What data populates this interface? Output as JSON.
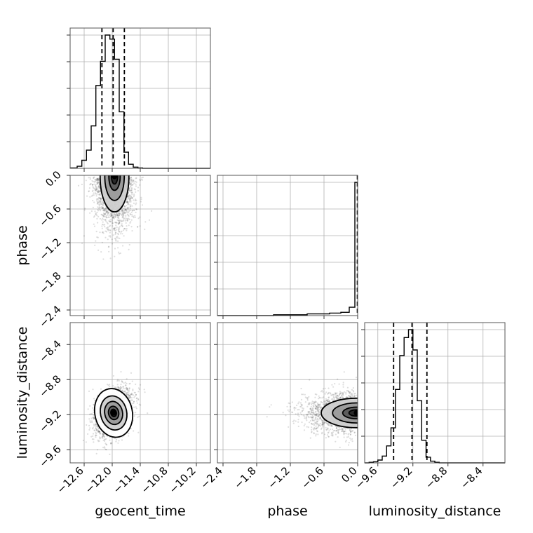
{
  "chart_data": {
    "type": "corner",
    "parameters": [
      "geocent_time",
      "phase",
      "luminosity_distance"
    ],
    "axis_labels": {
      "geocent_time": "geocent_time",
      "phase": "phase",
      "luminosity_distance": "luminosity_distance"
    },
    "ranges": {
      "geocent_time": [
        -12.9,
        -9.9
      ],
      "phase": [
        -2.5,
        0.0
      ],
      "luminosity_distance": [
        -9.75,
        -8.15
      ]
    },
    "ticks": {
      "geocent_time": [
        "−12.6",
        "−12.0",
        "−11.4",
        "−10.8",
        "−10.2"
      ],
      "phase": [
        "−2.4",
        "−1.8",
        "−1.2",
        "−0.6",
        "0.0"
      ],
      "luminosity_distance": [
        "−9.6",
        "−9.2",
        "−8.8",
        "−8.4"
      ]
    },
    "tick_values": {
      "geocent_time": [
        -12.6,
        -12.0,
        -11.4,
        -10.8,
        -10.2
      ],
      "phase": [
        -2.4,
        -1.8,
        -1.2,
        -0.6,
        0.0
      ],
      "luminosity_distance": [
        -9.6,
        -9.2,
        -8.8,
        -8.4
      ]
    },
    "histograms": {
      "geocent_time": {
        "bin_edges": [
          -12.9,
          -12.75,
          -12.65,
          -12.55,
          -12.45,
          -12.35,
          -12.25,
          -12.15,
          -12.05,
          -11.95,
          -11.85,
          -11.75,
          -11.65,
          -11.55,
          -11.45,
          -11.35,
          -11.25,
          -11.15,
          -9.9
        ],
        "counts": [
          1,
          5,
          20,
          45,
          105,
          205,
          265,
          330,
          320,
          270,
          140,
          40,
          10,
          3,
          1,
          0,
          0,
          0
        ],
        "quantiles": [
          -12.22,
          -11.98,
          -11.74
        ]
      },
      "phase": {
        "bin_edges": [
          -2.5,
          -1.5,
          -1.1,
          -0.9,
          -0.7,
          -0.5,
          -0.3,
          -0.15,
          -0.05,
          0.0
        ],
        "counts": [
          0,
          1,
          1,
          2,
          2,
          3,
          4,
          10,
          160
        ],
        "quantiles": [
          -0.005
        ]
      },
      "luminosity_distance": {
        "bin_edges": [
          -9.75,
          -9.7,
          -9.65,
          -9.6,
          -9.55,
          -9.5,
          -9.45,
          -9.4,
          -9.35,
          -9.3,
          -9.25,
          -9.2,
          -9.15,
          -9.1,
          -9.05,
          -9.0,
          -8.95,
          -8.9,
          -8.85,
          -8.8,
          -8.15
        ],
        "counts": [
          0,
          1,
          2,
          5,
          12,
          30,
          62,
          130,
          190,
          222,
          236,
          200,
          110,
          40,
          10,
          3,
          1,
          0,
          0,
          0
        ],
        "quantiles": [
          -9.42,
          -9.21,
          -9.04
        ]
      }
    },
    "joint": [
      {
        "x": "geocent_time",
        "y": "phase",
        "center": [
          -11.95,
          -0.02
        ],
        "spread": [
          0.22,
          0.45
        ],
        "points": 1800,
        "contour_levels": 3
      },
      {
        "x": "geocent_time",
        "y": "luminosity_distance",
        "center": [
          -11.97,
          -9.18
        ],
        "spread": [
          0.2,
          0.14
        ],
        "correlation": 0.35,
        "points": 2200,
        "contour_levels": 4
      },
      {
        "x": "phase",
        "y": "luminosity_distance",
        "center": [
          -0.02,
          -9.18
        ],
        "spread": [
          0.45,
          0.12
        ],
        "points": 1600,
        "contour_levels": 3
      }
    ],
    "grid": true
  }
}
